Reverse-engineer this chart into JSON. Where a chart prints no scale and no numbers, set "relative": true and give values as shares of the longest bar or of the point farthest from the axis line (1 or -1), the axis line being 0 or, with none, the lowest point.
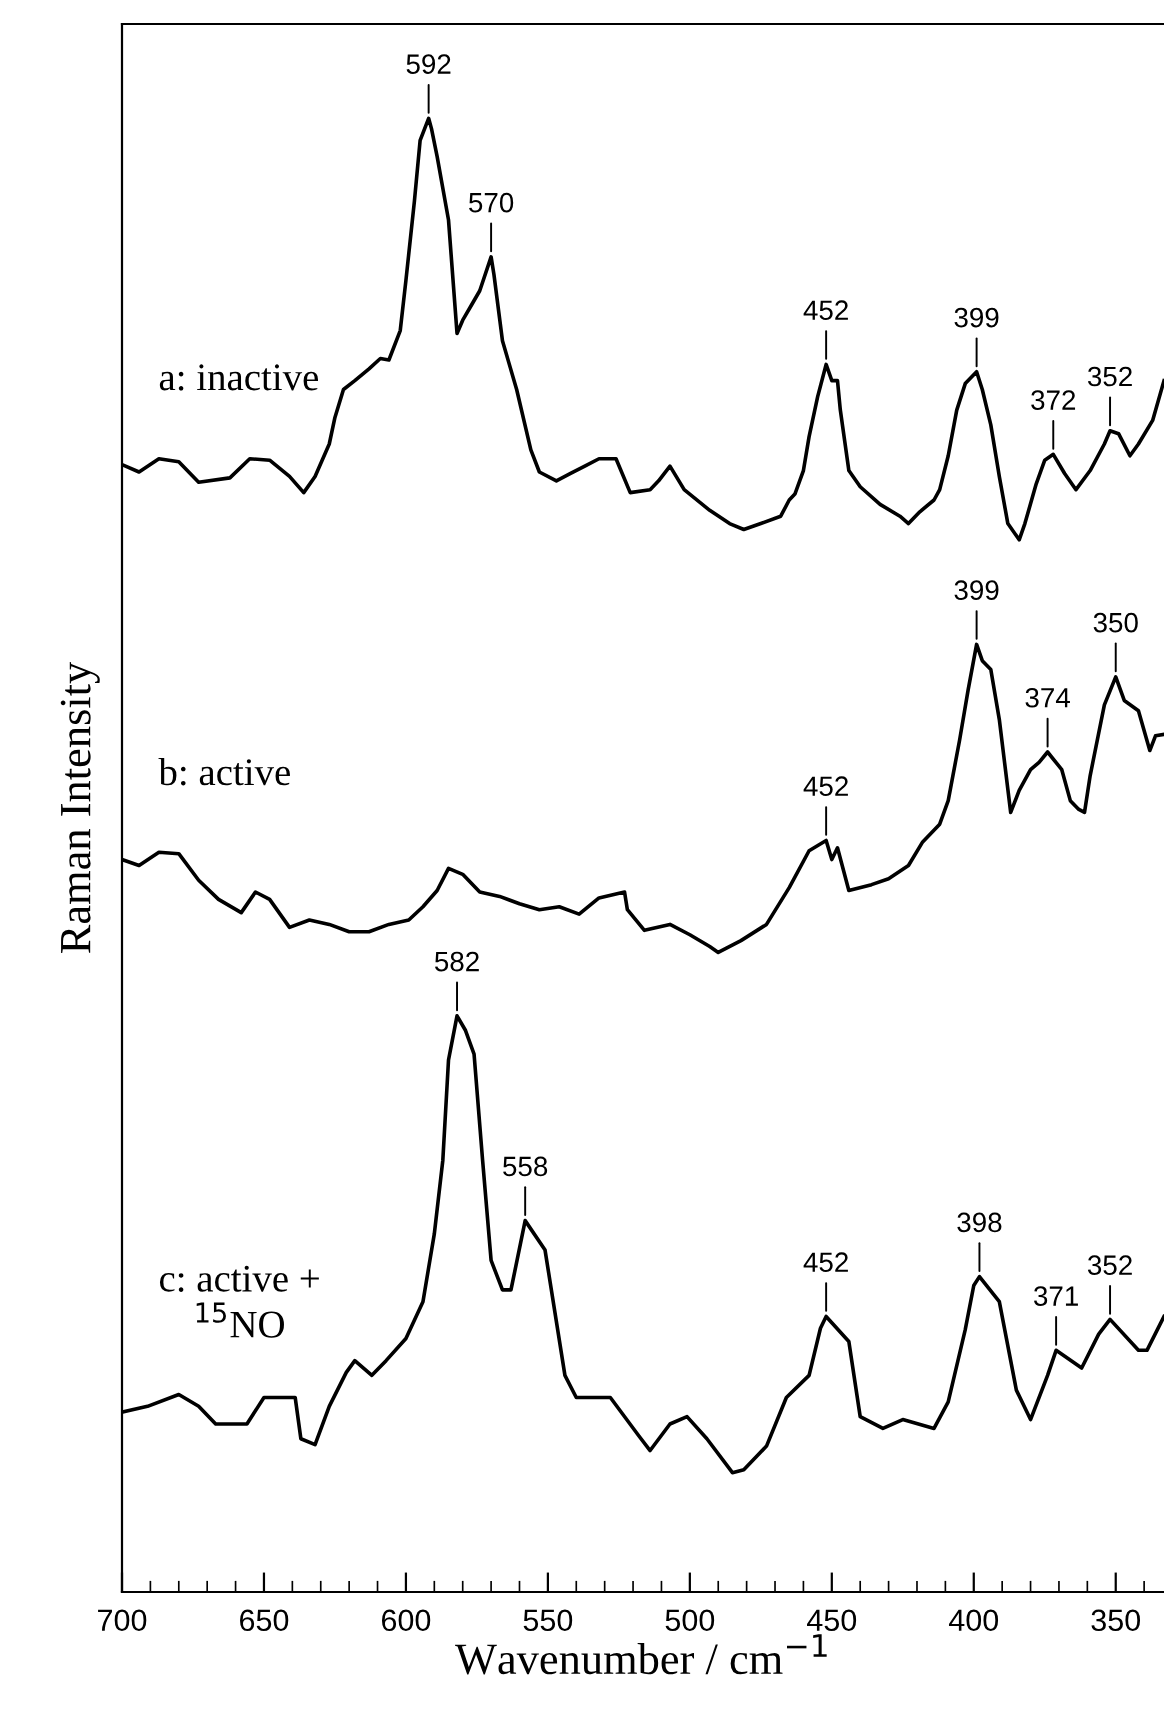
{
  "chart_data": {
    "type": "line",
    "relative": true,
    "xlabel": "Wavenumber / cm$^{−1}$",
    "ylabel": "Raman Intensity",
    "xlim": [
      700,
      333
    ],
    "xticks": [
      700,
      650,
      600,
      550,
      500,
      450,
      400,
      350,
      {
        "value": 690,
        "label": null
      },
      {
        "value": 680,
        "label": null
      },
      {
        "value": 670,
        "label": null
      },
      {
        "value": 660,
        "label": null
      },
      {
        "value": 640,
        "label": null
      },
      {
        "value": 630,
        "label": null
      },
      {
        "value": 620,
        "label": null
      },
      {
        "value": 610,
        "label": null
      },
      {
        "value": 590,
        "label": null
      },
      {
        "value": 580,
        "label": null
      },
      {
        "value": 570,
        "label": null
      },
      {
        "value": 560,
        "label": null
      },
      {
        "value": 540,
        "label": null
      },
      {
        "value": 530,
        "label": null
      },
      {
        "value": 520,
        "label": null
      },
      {
        "value": 510,
        "label": null
      },
      {
        "value": 490,
        "label": null
      },
      {
        "value": 480,
        "label": null
      },
      {
        "value": 470,
        "label": null
      },
      {
        "value": 460,
        "label": null
      },
      {
        "value": 440,
        "label": null
      },
      {
        "value": 430,
        "label": null
      },
      {
        "value": 420,
        "label": null
      },
      {
        "value": 410,
        "label": null
      },
      {
        "value": 390,
        "label": null
      },
      {
        "value": 380,
        "label": null
      },
      {
        "value": 370,
        "label": null
      },
      {
        "value": 360,
        "label": null
      },
      {
        "value": 340,
        "label": null
      }
    ],
    "tick_labels": "x",
    "grid": false,
    "legend": false,
    "marker": "none",
    "line_style": "solid",
    "series": [
      {
        "name": "a: inactive",
        "color": "#000000",
        "x": [
          700,
          694,
          687,
          680,
          673,
          662,
          655,
          648,
          641,
          636,
          632,
          627,
          625,
          622,
          618,
          613,
          609,
          606,
          602,
          600,
          597,
          595,
          592,
          591,
          589,
          585,
          582,
          580,
          577,
          574,
          570,
          569,
          566,
          561,
          556,
          553,
          547,
          542,
          537,
          532,
          526,
          521,
          514,
          511,
          507,
          502,
          493,
          486,
          481,
          475,
          468,
          465,
          463,
          460,
          458,
          455,
          452,
          450,
          448,
          447,
          444,
          440,
          433,
          426,
          423,
          419,
          414,
          412,
          409,
          406,
          403,
          399,
          397,
          394,
          391,
          388,
          384,
          382,
          378,
          375,
          372,
          368,
          364,
          359,
          354,
          352,
          349,
          345,
          342,
          337,
          333
        ],
        "values": [
          0.765,
          0.76,
          0.769,
          0.767,
          0.753,
          0.756,
          0.769,
          0.768,
          0.757,
          0.746,
          0.757,
          0.779,
          0.797,
          0.816,
          0.822,
          0.83,
          0.837,
          0.836,
          0.856,
          0.89,
          0.944,
          0.985,
          1.0,
          0.993,
          0.974,
          0.931,
          0.854,
          0.863,
          0.873,
          0.883,
          0.906,
          0.894,
          0.849,
          0.816,
          0.775,
          0.76,
          0.754,
          0.759,
          0.764,
          0.769,
          0.769,
          0.746,
          0.748,
          0.754,
          0.764,
          0.748,
          0.734,
          0.725,
          0.721,
          0.725,
          0.73,
          0.741,
          0.745,
          0.761,
          0.784,
          0.811,
          0.833,
          0.822,
          0.822,
          0.802,
          0.761,
          0.75,
          0.738,
          0.73,
          0.725,
          0.733,
          0.741,
          0.748,
          0.771,
          0.802,
          0.82,
          0.828,
          0.816,
          0.792,
          0.757,
          0.725,
          0.714,
          0.725,
          0.752,
          0.768,
          0.772,
          0.759,
          0.748,
          0.761,
          0.779,
          0.788,
          0.786,
          0.771,
          0.779,
          0.795,
          0.822
        ]
      },
      {
        "name": "b: active",
        "color": "#000000",
        "x": [
          700,
          694,
          687,
          680,
          673,
          666,
          658,
          653,
          648,
          641,
          634,
          627,
          620,
          613,
          606,
          599,
          594,
          589,
          585,
          580,
          574,
          567,
          560,
          553,
          546,
          539,
          532,
          523,
          522,
          516,
          507,
          500,
          493,
          490,
          482,
          473,
          465,
          458,
          452,
          450,
          448,
          444,
          436,
          430,
          423,
          418,
          412,
          409,
          405,
          402,
          399,
          397,
          394,
          391,
          387,
          384,
          380,
          377,
          374,
          369,
          366,
          363,
          361,
          359,
          354,
          350,
          347,
          342,
          338,
          336,
          333
        ],
        "values": [
          0.497,
          0.493,
          0.502,
          0.501,
          0.483,
          0.47,
          0.461,
          0.475,
          0.47,
          0.451,
          0.456,
          0.453,
          0.448,
          0.448,
          0.453,
          0.456,
          0.465,
          0.476,
          0.491,
          0.487,
          0.475,
          0.472,
          0.467,
          0.463,
          0.465,
          0.46,
          0.471,
          0.475,
          0.463,
          0.449,
          0.453,
          0.446,
          0.438,
          0.434,
          0.442,
          0.453,
          0.478,
          0.503,
          0.51,
          0.497,
          0.505,
          0.476,
          0.48,
          0.484,
          0.493,
          0.509,
          0.521,
          0.537,
          0.578,
          0.612,
          0.643,
          0.632,
          0.626,
          0.592,
          0.529,
          0.544,
          0.558,
          0.563,
          0.57,
          0.558,
          0.537,
          0.531,
          0.529,
          0.554,
          0.602,
          0.621,
          0.605,
          0.598,
          0.571,
          0.581,
          0.582
        ]
      },
      {
        "name": "c: active +\n$^{15}$NO",
        "color": "#000000",
        "x": [
          700,
          691,
          680,
          673,
          667,
          656,
          650,
          639,
          637,
          632,
          627,
          621,
          618,
          612,
          607,
          600,
          594,
          590,
          587,
          585,
          582,
          579,
          576,
          573,
          570,
          566,
          563,
          558,
          551,
          544,
          540,
          528,
          518,
          514,
          507,
          501,
          494,
          485,
          481,
          473,
          466,
          458,
          454,
          452,
          444,
          440,
          432,
          425,
          414,
          409,
          403,
          400,
          398,
          391,
          385,
          380,
          374,
          371,
          362,
          356,
          352,
          342,
          339,
          333
        ],
        "values": [
          0.122,
          0.126,
          0.134,
          0.126,
          0.114,
          0.114,
          0.132,
          0.132,
          0.104,
          0.1,
          0.126,
          0.149,
          0.157,
          0.147,
          0.157,
          0.172,
          0.197,
          0.243,
          0.293,
          0.361,
          0.391,
          0.381,
          0.365,
          0.293,
          0.225,
          0.205,
          0.205,
          0.252,
          0.232,
          0.147,
          0.132,
          0.132,
          0.106,
          0.096,
          0.114,
          0.119,
          0.104,
          0.081,
          0.083,
          0.099,
          0.132,
          0.147,
          0.179,
          0.187,
          0.17,
          0.119,
          0.111,
          0.117,
          0.111,
          0.129,
          0.178,
          0.208,
          0.214,
          0.197,
          0.137,
          0.117,
          0.147,
          0.164,
          0.152,
          0.175,
          0.185,
          0.164,
          0.164,
          0.187
        ]
      }
    ],
    "annotations": [
      {
        "text": "592",
        "x": 592,
        "y": 1.0
      },
      {
        "text": "570",
        "x": 570,
        "y": 0.906
      },
      {
        "text": "452",
        "x": 452,
        "y": 0.833
      },
      {
        "text": "399",
        "x": 399,
        "y": 0.828
      },
      {
        "text": "372",
        "x": 372,
        "y": 0.772
      },
      {
        "text": "352",
        "x": 352,
        "y": 0.788
      },
      {
        "text": "399",
        "x": 399,
        "y": 0.643
      },
      {
        "text": "374",
        "x": 374,
        "y": 0.57
      },
      {
        "text": "350",
        "x": 350,
        "y": 0.621
      },
      {
        "text": "452",
        "x": 452,
        "y": 0.51
      },
      {
        "text": "582",
        "x": 582,
        "y": 0.391
      },
      {
        "text": "558",
        "x": 558,
        "y": 0.252
      },
      {
        "text": "452",
        "x": 452,
        "y": 0.187
      },
      {
        "text": "398",
        "x": 398,
        "y": 0.214
      },
      {
        "text": "371",
        "x": 371,
        "y": 0.164
      },
      {
        "text": "352",
        "x": 352,
        "y": 0.185
      }
    ]
  }
}
